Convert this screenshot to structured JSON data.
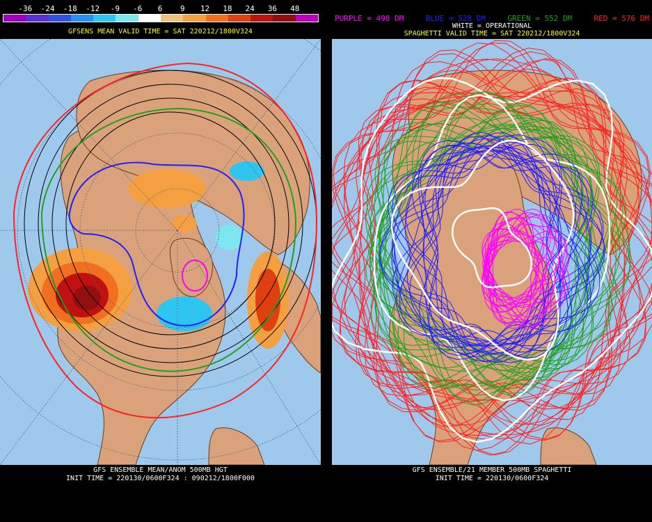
{
  "left": {
    "scale_ticks": [
      "-36",
      "-24",
      "-18",
      "-12",
      "-9",
      "-6",
      "6",
      "9",
      "12",
      "18",
      "24",
      "36",
      "48"
    ],
    "scale_colors": [
      "#a000c0",
      "#5a2fd6",
      "#2f52e0",
      "#2a8ff0",
      "#2ec5f0",
      "#7de7f0",
      "#ffffff",
      "#f0c080",
      "#f5a040",
      "#f07020",
      "#e04010",
      "#c01010",
      "#901010",
      "#c000c0"
    ],
    "title": "GFSENS MEAN VALID TIME = SAT 220212/1800V324",
    "footer_line1": "GFS ENSEMBLE MEAN/ANOM 500MB HGT",
    "footer_line2": "INIT TIME = 220130/0600F324 : 090212/1800F000"
  },
  "right": {
    "legend": {
      "purple": "PURPLE = 498 DM",
      "blue": "BLUE = 528 DM",
      "green": "GREEN = 552 DM",
      "red": "RED = 576 DM"
    },
    "subtitle": "WHITE = OPERATIONAL",
    "title": "SPAGHETTI VALID TIME = SAT 220212/1800V324",
    "footer_line1": "GFS ENSEMBLE/21 MEMBER 500MB SPAGHETTI",
    "footer_line2": "INIT TIME = 220130/0600F324"
  },
  "colors": {
    "ocean": "#9ec8ec",
    "land": "#d9a27a",
    "border": "#6b3a1e",
    "grid": "#4a5f7a",
    "title_yellow": "#ffff00",
    "purple": "#ff00ff",
    "blue": "#2020ff",
    "green": "#20a020",
    "red": "#ff2020",
    "white": "#ffffff"
  }
}
